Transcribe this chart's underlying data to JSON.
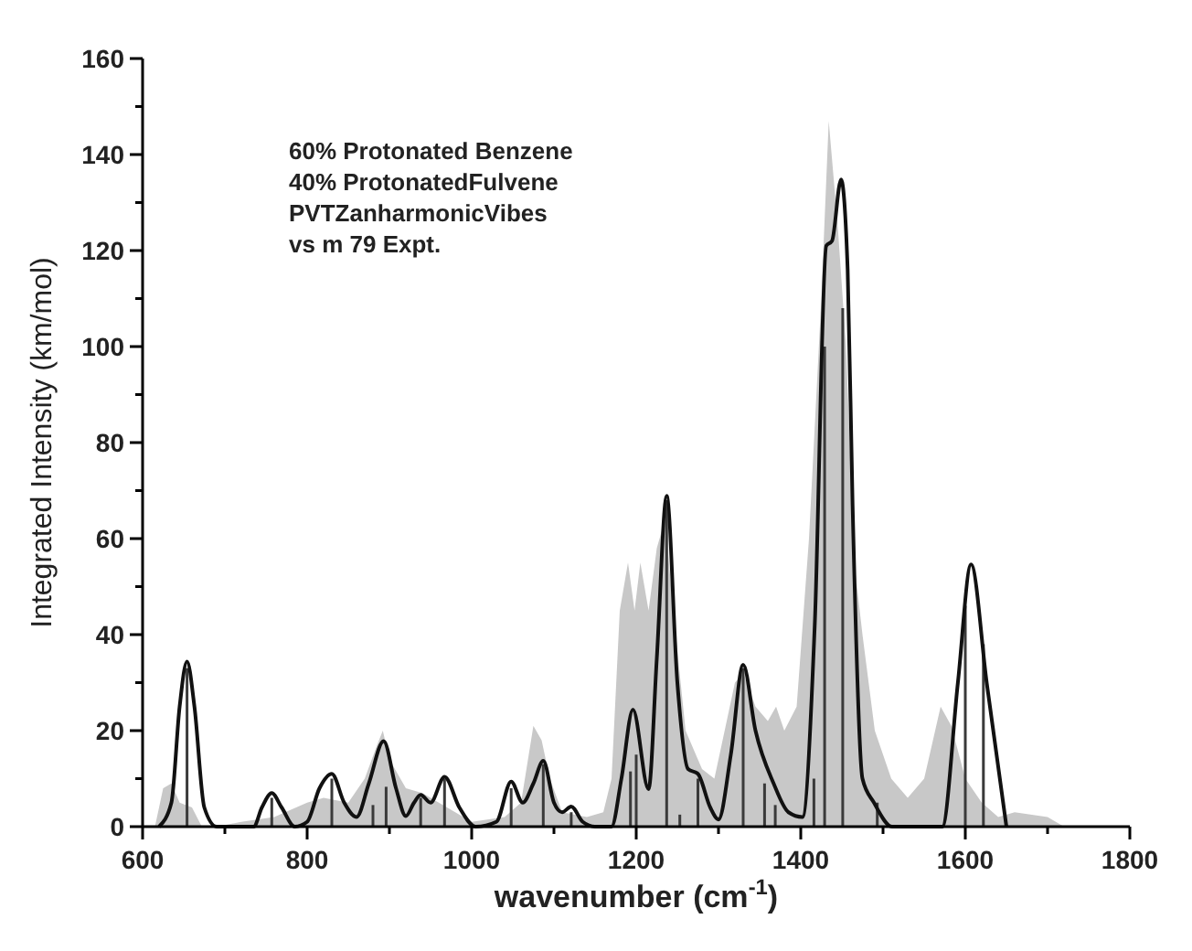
{
  "chart_data": {
    "type": "line",
    "xlabel": "wavenumber (cm$^{-1}$)",
    "ylabel": "Integrated Intensity (km/mol)",
    "annotations": [
      "60% Protonated Benzene",
      "40% ProtonatedFulvene",
      "PVTZanharmonicVibes",
      "vs m 79 Expt."
    ],
    "xlim": [
      600,
      1800
    ],
    "xticks": [
      600,
      {
        "value": 700,
        "label": null
      },
      800,
      {
        "value": 900,
        "label": null
      },
      1000,
      {
        "value": 1100,
        "label": null
      },
      1200,
      {
        "value": 1300,
        "label": null
      },
      1400,
      {
        "value": 1500,
        "label": null
      },
      1600,
      {
        "value": 1700,
        "label": null
      },
      1800
    ],
    "ylim": [
      0,
      160
    ],
    "yticks": [
      0,
      {
        "value": 10,
        "label": null
      },
      20,
      {
        "value": 30,
        "label": null
      },
      40,
      {
        "value": 50,
        "label": null
      },
      60,
      {
        "value": 70,
        "label": null
      },
      80,
      {
        "value": 90,
        "label": null
      },
      100,
      {
        "value": 110,
        "label": null
      },
      120,
      {
        "value": 130,
        "label": null
      },
      140,
      {
        "value": 150,
        "label": null
      },
      160
    ],
    "grid": false,
    "series": [
      {
        "type": "area",
        "color": "#c8c8c8",
        "x": [
          615,
          625,
          635,
          645,
          660,
          672,
          690,
          720,
          760,
          800,
          820,
          850,
          870,
          885,
          892,
          900,
          920,
          940,
          960,
          980,
          1000,
          1040,
          1060,
          1075,
          1085,
          1095,
          1110,
          1140,
          1160,
          1170,
          1180,
          1190,
          1198,
          1205,
          1215,
          1225,
          1235,
          1245,
          1260,
          1280,
          1295,
          1310,
          1320,
          1330,
          1345,
          1360,
          1370,
          1380,
          1395,
          1410,
          1425,
          1434,
          1445,
          1455,
          1465,
          1475,
          1490,
          1510,
          1530,
          1550,
          1570,
          1583,
          1600,
          1620,
          1640,
          1660,
          1700,
          1720
        ],
        "values": [
          0,
          8,
          9,
          5,
          4,
          0,
          0,
          1,
          2,
          5,
          6,
          5,
          10,
          17,
          20,
          14,
          8,
          7,
          5,
          3,
          1,
          2,
          5,
          21,
          18,
          10,
          3,
          2,
          3,
          10,
          45,
          55,
          45,
          55,
          45,
          58,
          64,
          45,
          20,
          12,
          10,
          22,
          30,
          32,
          25,
          22,
          25,
          20,
          25,
          60,
          110,
          147,
          125,
          100,
          55,
          40,
          20,
          10,
          6,
          10,
          25,
          21,
          10,
          5,
          2,
          3,
          2,
          0
        ]
      },
      {
        "type": "bar",
        "color": "#3a3a3a",
        "x": [
          654,
          757,
          830,
          880,
          896,
          938,
          967,
          1048,
          1087,
          1121,
          1193,
          1200,
          1237,
          1253,
          1275,
          1330,
          1356,
          1369,
          1416,
          1429,
          1451,
          1493,
          1600,
          1622
        ],
        "values": [
          33,
          6,
          10,
          4.5,
          8.3,
          6,
          10,
          8,
          13,
          3,
          11.5,
          15,
          68,
          2.5,
          10,
          33,
          9,
          4.5,
          10,
          100,
          108,
          5,
          46,
          38
        ]
      },
      {
        "color": "#111111",
        "x": [
          620,
          635,
          645,
          654,
          663,
          675,
          690,
          735,
          745,
          757,
          769,
          785,
          800,
          815,
          830,
          845,
          860,
          875,
          893,
          908,
          920,
          930,
          938,
          950,
          967,
          985,
          1005,
          1030,
          1048,
          1062,
          1075,
          1087,
          1100,
          1110,
          1121,
          1135,
          1150,
          1170,
          1182,
          1196,
          1215,
          1225,
          1237,
          1250,
          1263,
          1275,
          1290,
          1300,
          1315,
          1330,
          1345,
          1367,
          1385,
          1402,
          1417,
          1431,
          1438,
          1449,
          1457,
          1463,
          1475,
          1489,
          1511,
          1572,
          1591,
          1607,
          1626,
          1650
        ],
        "values": [
          0,
          5,
          25,
          34.4,
          25,
          4,
          0,
          0,
          4,
          7,
          4,
          0,
          1,
          8,
          11,
          5,
          2,
          9,
          17.8,
          8,
          2.2,
          5,
          6.6,
          5,
          10.4,
          4,
          0,
          1,
          9.4,
          5,
          9,
          13.7,
          5,
          3,
          4.2,
          1,
          0,
          0,
          10,
          24.4,
          7.8,
          35,
          68.9,
          30,
          12,
          11,
          4,
          1.5,
          15,
          33.7,
          20,
          9,
          3,
          2,
          42,
          121,
          122,
          134.8,
          116,
          67,
          10,
          5,
          0,
          0,
          30,
          54.6,
          30,
          0
        ]
      }
    ]
  }
}
